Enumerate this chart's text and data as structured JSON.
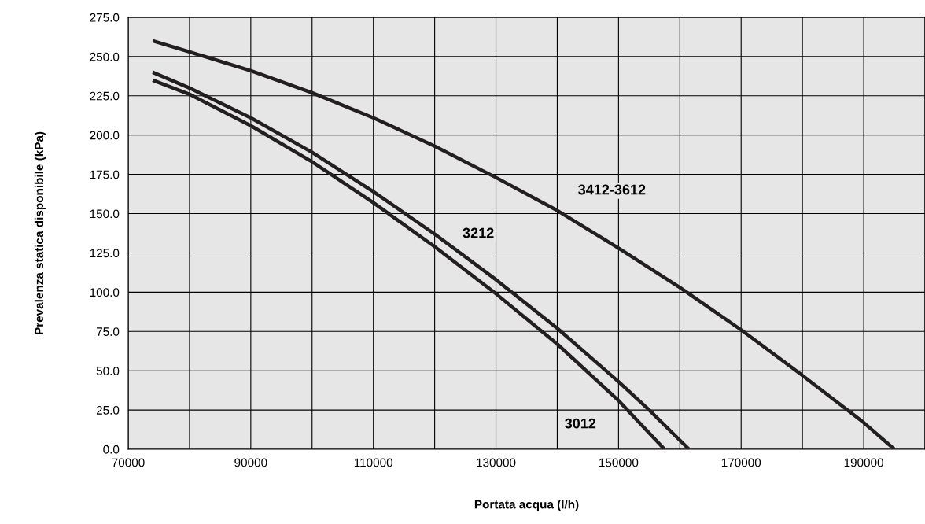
{
  "chart_data": {
    "type": "line",
    "xlabel": "Portata acqua (l/h)",
    "ylabel": "Prevalenza statica disponibile (kPa)",
    "series": [
      {
        "name": "3412-3612",
        "color": "#231f20",
        "x": [
          74000,
          80000,
          90000,
          100000,
          110000,
          120000,
          130000,
          140000,
          150000,
          160000,
          170000,
          180000,
          190000,
          195000
        ],
        "values": [
          260,
          253,
          241,
          227,
          211,
          193,
          173,
          152,
          128,
          103,
          76,
          47,
          17,
          0
        ]
      },
      {
        "name": "3212",
        "color": "#231f20",
        "x": [
          74000,
          80000,
          90000,
          100000,
          110000,
          120000,
          130000,
          140000,
          150000,
          155000,
          161500
        ],
        "values": [
          240,
          230,
          211,
          189,
          164,
          137,
          108,
          77,
          43,
          25,
          0
        ]
      },
      {
        "name": "3012",
        "color": "#231f20",
        "x": [
          74000,
          80000,
          90000,
          100000,
          110000,
          120000,
          130000,
          140000,
          150000,
          157500
        ],
        "values": [
          235,
          226,
          206,
          183,
          157,
          129,
          99,
          67,
          31,
          0
        ]
      }
    ],
    "xlim": [
      70000,
      200000
    ],
    "xticks": [
      70000,
      90000,
      110000,
      130000,
      150000,
      170000,
      190000
    ],
    "ylim": [
      0,
      275
    ],
    "yticks": [
      {
        "value": 0,
        "label": "0.0"
      },
      {
        "value": 25,
        "label": "25.0"
      },
      {
        "value": 50,
        "label": "50.0"
      },
      {
        "value": 75,
        "label": "75.0"
      },
      {
        "value": 100,
        "label": "100.0"
      },
      {
        "value": 125,
        "label": "125.0"
      },
      {
        "value": 150,
        "label": "150.0"
      },
      {
        "value": 175,
        "label": "175.0"
      },
      {
        "value": 200,
        "label": "200.0"
      },
      {
        "value": 225,
        "label": "225.0"
      },
      {
        "value": 250,
        "label": "250.0"
      },
      {
        "value": 275,
        "label": "275.0"
      }
    ],
    "grid": true,
    "marker": "none",
    "line_style": "solid"
  }
}
